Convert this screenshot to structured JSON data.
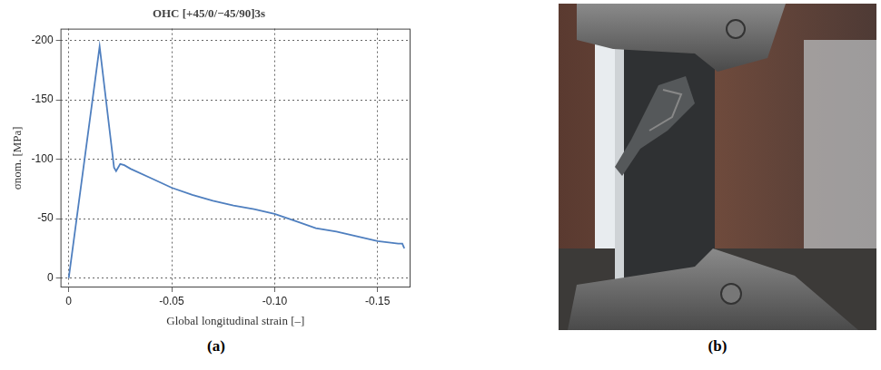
{
  "chart_data": {
    "type": "line",
    "title": "OHC [+45/0/−45/90]3s",
    "x_label": "Global longitudinal strain [–]",
    "y_label": "σnom. [MPa]",
    "color": "#4f7fbf",
    "grid": true,
    "x": [
      0,
      -0.015,
      -0.022,
      -0.023,
      -0.025,
      -0.027,
      -0.03,
      -0.04,
      -0.05,
      -0.06,
      -0.07,
      -0.08,
      -0.09,
      -0.1,
      -0.11,
      -0.12,
      -0.13,
      -0.14,
      -0.15,
      -0.16,
      -0.162,
      -0.163
    ],
    "values": [
      0,
      -195,
      -93,
      -90,
      -96,
      -95,
      -92,
      -84,
      -76,
      -70,
      -65,
      -61,
      -58,
      -54,
      -48,
      -42,
      -39,
      -35,
      -31,
      -29,
      -29,
      -25
    ],
    "xlim": [
      0.004,
      -0.166
    ],
    "xticks": [
      0,
      -0.05,
      {
        "value": -0.1,
        "label": "-0.10"
      },
      -0.15
    ],
    "ylim": [
      8,
      -210
    ],
    "yticks": [
      0,
      -50,
      -100,
      -150,
      -200
    ]
  },
  "panel_labels": [
    "(a)",
    "(b)"
  ]
}
